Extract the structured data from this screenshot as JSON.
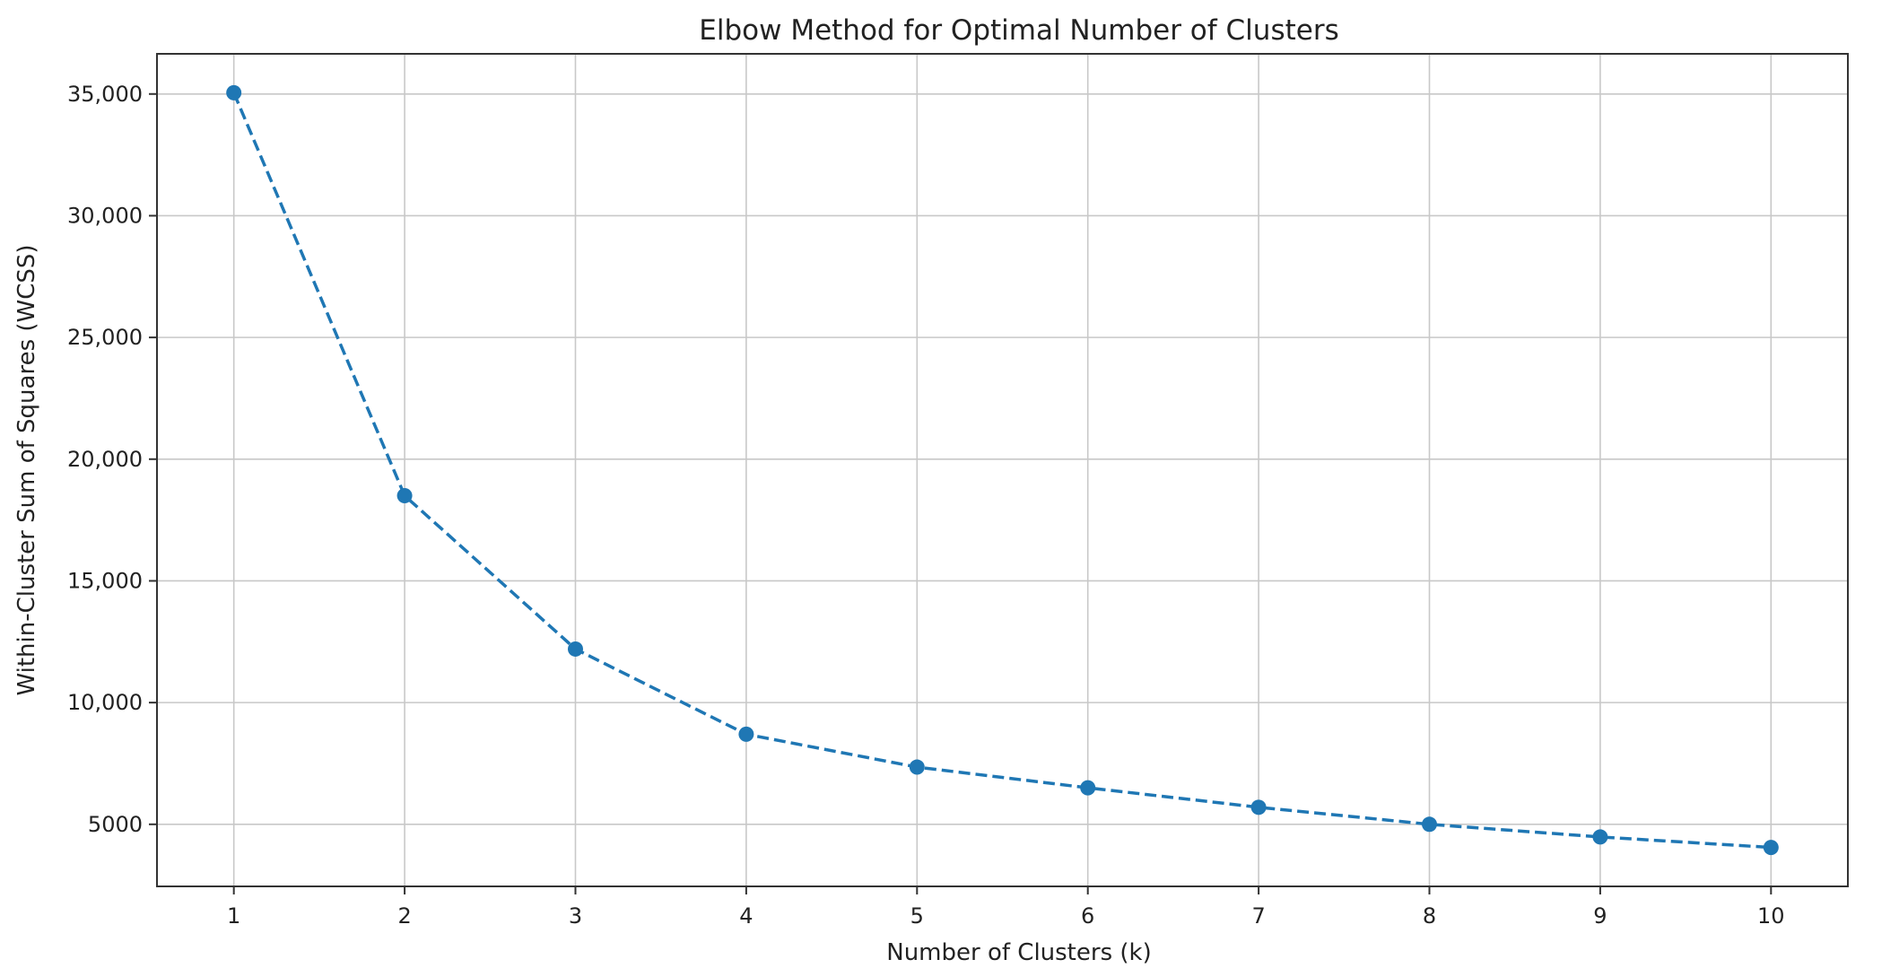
{
  "chart_data": {
    "type": "line",
    "title": "Elbow Method for Optimal Number of Clusters",
    "xlabel": "Number of Clusters (k)",
    "ylabel": "Within-Cluster Sum of Squares (WCSS)",
    "x": [
      1,
      2,
      3,
      4,
      5,
      6,
      7,
      8,
      9,
      10
    ],
    "series": [
      {
        "values": [
          35050,
          18500,
          12200,
          8700,
          7350,
          6500,
          5700,
          5000,
          4480,
          4050
        ]
      }
    ],
    "x_ticks": [
      "1",
      "2",
      "3",
      "4",
      "5",
      "6",
      "7",
      "8",
      "9",
      "10"
    ],
    "y_ticks": [
      {
        "value": 5000,
        "label": "5000"
      },
      {
        "value": 10000,
        "label": "10,000"
      },
      {
        "value": 15000,
        "label": "15,000"
      },
      {
        "value": 20000,
        "label": "20,000"
      },
      {
        "value": 25000,
        "label": "25,000"
      },
      {
        "value": 30000,
        "label": "30,000"
      },
      {
        "value": 35000,
        "label": "35,000"
      }
    ],
    "xlim": [
      0.55,
      10.45
    ],
    "ylim": [
      2450,
      36650
    ],
    "grid": true,
    "line_style": "dashed",
    "marker": "circle",
    "colors": {
      "line": "#1f77b4",
      "grid": "#c8c8c8",
      "axes": "#333333"
    }
  }
}
